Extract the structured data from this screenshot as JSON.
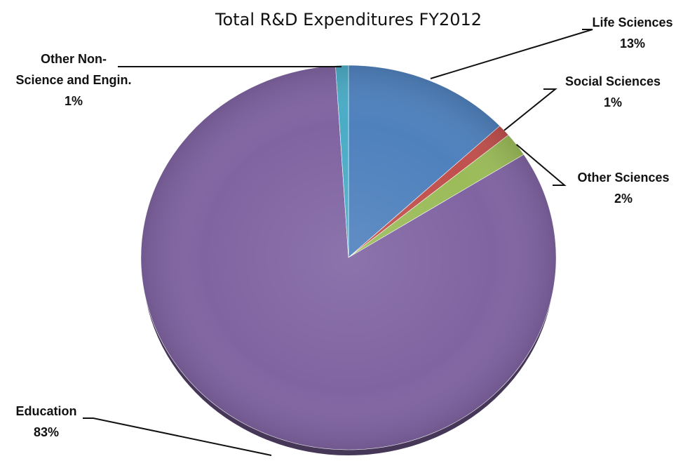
{
  "chart_data": {
    "type": "pie",
    "title": "Total R&D Expenditures FY2012",
    "slices": [
      {
        "name": "Life Sciences",
        "value": 13,
        "percent_label": "13%",
        "color": "#4F81BD"
      },
      {
        "name": "Social Sciences",
        "value": 1,
        "percent_label": "1%",
        "color": "#C0504D"
      },
      {
        "name": "Other Sciences",
        "value": 2,
        "percent_label": "2%",
        "color": "#9BBB59"
      },
      {
        "name": "Education",
        "value": 83,
        "percent_label": "83%",
        "color": "#8064A2"
      },
      {
        "name": "Other Non-Science and Engin.",
        "value": 1,
        "percent_label": "1%",
        "color": "#4BACC6"
      }
    ],
    "legend": "none",
    "labels": [
      {
        "slice": 0,
        "lines": [
          "Life Sciences",
          "13%"
        ]
      },
      {
        "slice": 1,
        "lines": [
          "Social Sciences",
          "1%"
        ]
      },
      {
        "slice": 2,
        "lines": [
          "Other Sciences",
          "2%"
        ]
      },
      {
        "slice": 3,
        "lines": [
          "Education",
          "83%"
        ]
      },
      {
        "slice": 4,
        "lines": [
          "Other Non-",
          "Science and Engin.",
          "1%"
        ]
      }
    ]
  }
}
